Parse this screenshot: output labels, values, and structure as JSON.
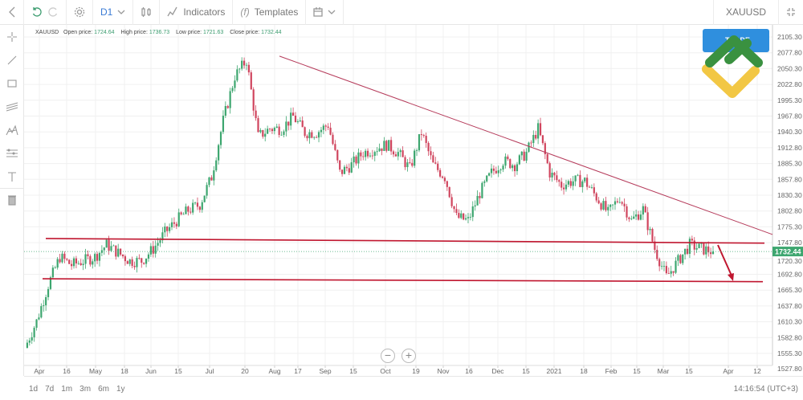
{
  "toolbar": {
    "timeframe": "D1",
    "indicators": "Indicators",
    "templates": "Templates",
    "symbol": "XAUUSD"
  },
  "info": {
    "symbol": "XAUUSD",
    "open_label": "Open price:",
    "open": "1724.64",
    "high_label": "High price:",
    "high": "1736.73",
    "low_label": "Low price:",
    "low": "1721.63",
    "close_label": "Close price:",
    "close": "1732.44"
  },
  "trade_button": "TRADE",
  "ranges": [
    "1d",
    "7d",
    "1m",
    "3m",
    "6m",
    "1y"
  ],
  "clock": "14:16:54 (UTC+3)",
  "zoom": {
    "out": "−",
    "in": "+"
  },
  "colors": {
    "up": "#3da66f",
    "down": "#d0455e",
    "trendline": "#b53a5a",
    "support": "#c0162f",
    "price_tag": "#3da66f"
  },
  "chart_data": {
    "type": "candlestick",
    "symbol": "XAUUSD",
    "yticks": [
      "2105.30",
      "2077.80",
      "2050.30",
      "2022.80",
      "1995.30",
      "1967.80",
      "1940.30",
      "1912.80",
      "1885.30",
      "1857.80",
      "1830.30",
      "1802.80",
      "1775.30",
      "1747.80",
      "1720.30",
      "1692.80",
      "1665.30",
      "1637.80",
      "1610.30",
      "1582.80",
      "1555.30",
      "1527.80"
    ],
    "xticks": [
      "Apr",
      "16",
      "May",
      "18",
      "Jun",
      "15",
      "Jul",
      "20",
      "Aug",
      "17",
      "Sep",
      "15",
      "Oct",
      "19",
      "Nov",
      "16",
      "Dec",
      "15",
      "2021",
      "18",
      "Feb",
      "15",
      "Mar",
      "15",
      "Apr",
      "12"
    ],
    "ylim": [
      1527.8,
      2105.3
    ],
    "approx_closes": [
      1565,
      1611,
      1674,
      1723,
      1709,
      1716,
      1723,
      1744,
      1730,
      1716,
      1716,
      1737,
      1765,
      1786,
      1804,
      1814,
      1862,
      1960,
      2037,
      2065,
      1932,
      1946,
      1946,
      1967,
      1939,
      1939,
      1953,
      1869,
      1883,
      1904,
      1911,
      1918,
      1904,
      1876,
      1939,
      1883,
      1862,
      1792,
      1786,
      1834,
      1869,
      1890,
      1883,
      1904,
      1946,
      1869,
      1848,
      1855,
      1855,
      1827,
      1799,
      1827,
      1786,
      1806,
      1737,
      1688,
      1716,
      1744,
      1737,
      1732.44
    ],
    "last_price": "1732.44",
    "drawings": {
      "descending_trendline": [
        2072,
        1762
      ],
      "resistance_line": [
        1755,
        1747
      ],
      "support_line": [
        1685,
        1680
      ]
    }
  }
}
